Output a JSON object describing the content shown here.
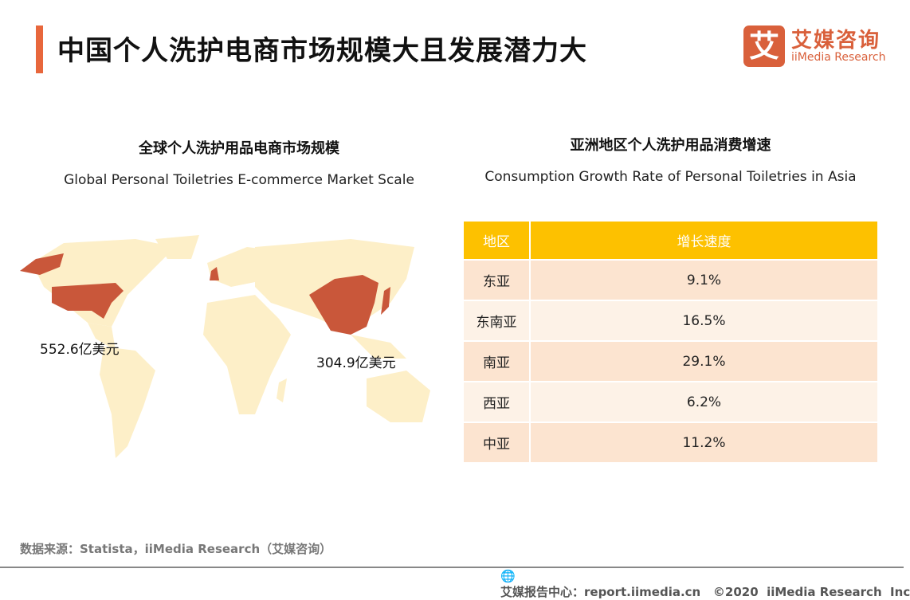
{
  "header": {
    "title": "中国个人洗护电商市场规模大且发展潜力大",
    "logo_mark": "艾",
    "logo_cn": "艾媒咨询",
    "logo_en": "iiMedia Research"
  },
  "left": {
    "title_cn": "全球个人洗护用品电商市场规模",
    "title_en": "Global Personal Toiletries E-commerce Market Scale",
    "labels": {
      "usa": "552.6亿美元",
      "china": "304.9亿美元"
    },
    "colors": {
      "highlight": "#c9573a",
      "land": "#fdefc8"
    }
  },
  "right": {
    "title_cn": "亚洲地区个人洗护用品消费增速",
    "title_en": "Consumption Growth Rate of Personal Toiletries in Asia",
    "table": {
      "headers": [
        "地区",
        "增长速度"
      ],
      "rows": [
        [
          "东亚",
          "9.1%"
        ],
        [
          "东南亚",
          "16.5%"
        ],
        [
          "南亚",
          "29.1%"
        ],
        [
          "西亚",
          "6.2%"
        ],
        [
          "中亚",
          "11.2%"
        ]
      ]
    },
    "colors": {
      "header": "#fdc100",
      "row_odd": "#fce4d0",
      "row_even": "#fdf2e7"
    }
  },
  "source": "数据来源：Statista，iiMedia Research（艾媒咨询）",
  "footer": {
    "icon": "globe-icon",
    "text": "艾媒报告中心：report.iimedia.cn   ©2020  iiMedia Research  Inc"
  }
}
